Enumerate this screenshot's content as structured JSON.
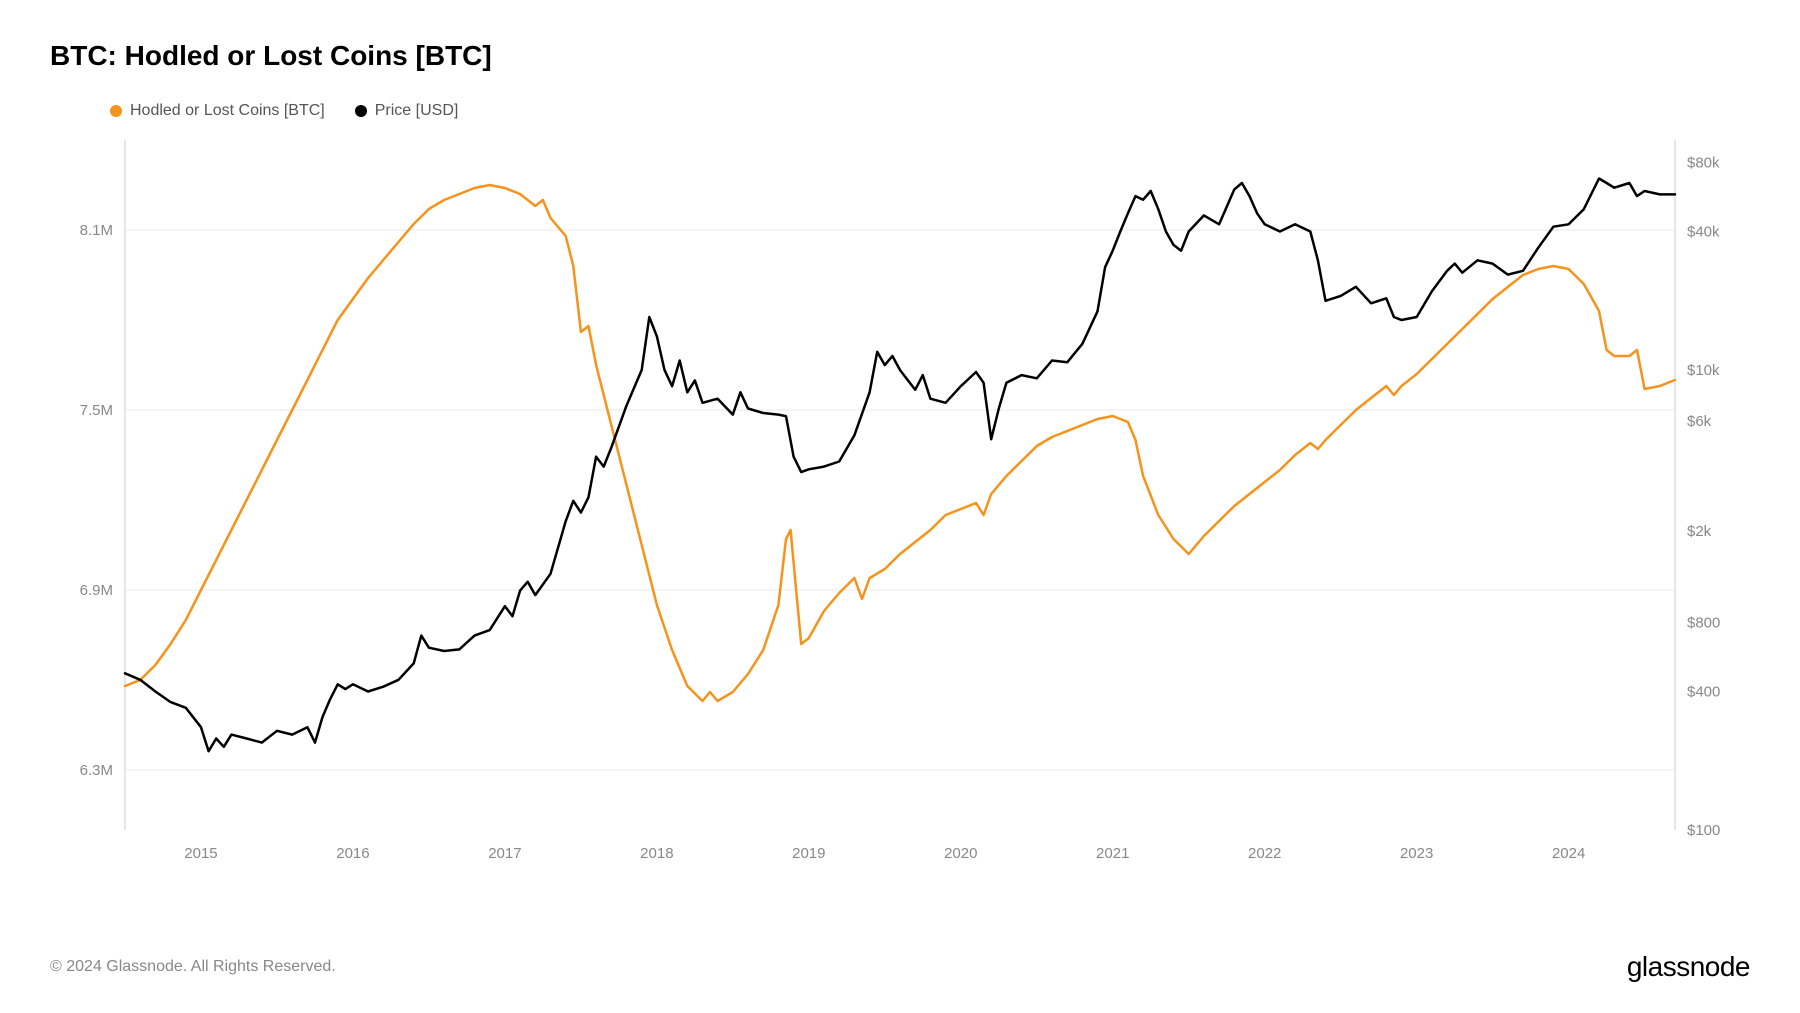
{
  "title": "BTC: Hodled or Lost Coins [BTC]",
  "legend": {
    "hodled": {
      "label": "Hodled or Lost Coins [BTC]",
      "color": "#f7931a"
    },
    "price": {
      "label": "Price [USD]",
      "color": "#000000"
    }
  },
  "chart": {
    "type": "line-dual-axis",
    "background_color": "#ffffff",
    "grid_color": "#e8e8e8",
    "x": {
      "ticks": [
        "2015",
        "2016",
        "2017",
        "2018",
        "2019",
        "2020",
        "2021",
        "2022",
        "2023",
        "2024"
      ],
      "range_start": 2014.5,
      "range_end": 2024.7
    },
    "y_left": {
      "ticks": [
        "6.3M",
        "6.9M",
        "7.5M",
        "8.1M"
      ],
      "tick_values": [
        6300000,
        6900000,
        7500000,
        8100000
      ],
      "min": 6100000,
      "max": 8400000,
      "scale": "linear"
    },
    "y_right": {
      "ticks": [
        "$100",
        "$400",
        "$800",
        "$2k",
        "$6k",
        "$10k",
        "$40k",
        "$80k"
      ],
      "tick_values": [
        100,
        400,
        800,
        2000,
        6000,
        10000,
        40000,
        80000
      ],
      "min": 100,
      "max": 100000,
      "scale": "log"
    },
    "series": {
      "hodled": {
        "color": "#f7931a",
        "line_width": 2.5,
        "data": [
          [
            2014.5,
            6580000
          ],
          [
            2014.6,
            6600000
          ],
          [
            2014.7,
            6650000
          ],
          [
            2014.8,
            6720000
          ],
          [
            2014.9,
            6800000
          ],
          [
            2015.0,
            6900000
          ],
          [
            2015.1,
            7000000
          ],
          [
            2015.2,
            7100000
          ],
          [
            2015.3,
            7200000
          ],
          [
            2015.4,
            7300000
          ],
          [
            2015.5,
            7400000
          ],
          [
            2015.6,
            7500000
          ],
          [
            2015.7,
            7600000
          ],
          [
            2015.8,
            7700000
          ],
          [
            2015.9,
            7800000
          ],
          [
            2016.0,
            7870000
          ],
          [
            2016.1,
            7940000
          ],
          [
            2016.2,
            8000000
          ],
          [
            2016.3,
            8060000
          ],
          [
            2016.4,
            8120000
          ],
          [
            2016.5,
            8170000
          ],
          [
            2016.6,
            8200000
          ],
          [
            2016.7,
            8220000
          ],
          [
            2016.8,
            8240000
          ],
          [
            2016.9,
            8250000
          ],
          [
            2017.0,
            8240000
          ],
          [
            2017.1,
            8220000
          ],
          [
            2017.2,
            8180000
          ],
          [
            2017.25,
            8200000
          ],
          [
            2017.3,
            8140000
          ],
          [
            2017.4,
            8080000
          ],
          [
            2017.45,
            7980000
          ],
          [
            2017.5,
            7760000
          ],
          [
            2017.55,
            7780000
          ],
          [
            2017.6,
            7650000
          ],
          [
            2017.7,
            7450000
          ],
          [
            2017.8,
            7250000
          ],
          [
            2017.9,
            7050000
          ],
          [
            2018.0,
            6850000
          ],
          [
            2018.1,
            6700000
          ],
          [
            2018.2,
            6580000
          ],
          [
            2018.3,
            6530000
          ],
          [
            2018.35,
            6560000
          ],
          [
            2018.4,
            6530000
          ],
          [
            2018.5,
            6560000
          ],
          [
            2018.6,
            6620000
          ],
          [
            2018.7,
            6700000
          ],
          [
            2018.8,
            6850000
          ],
          [
            2018.85,
            7070000
          ],
          [
            2018.88,
            7100000
          ],
          [
            2018.92,
            6880000
          ],
          [
            2018.95,
            6720000
          ],
          [
            2019.0,
            6740000
          ],
          [
            2019.1,
            6830000
          ],
          [
            2019.2,
            6890000
          ],
          [
            2019.3,
            6940000
          ],
          [
            2019.35,
            6870000
          ],
          [
            2019.4,
            6940000
          ],
          [
            2019.5,
            6970000
          ],
          [
            2019.6,
            7020000
          ],
          [
            2019.7,
            7060000
          ],
          [
            2019.8,
            7100000
          ],
          [
            2019.9,
            7150000
          ],
          [
            2020.0,
            7170000
          ],
          [
            2020.1,
            7190000
          ],
          [
            2020.15,
            7150000
          ],
          [
            2020.2,
            7220000
          ],
          [
            2020.3,
            7280000
          ],
          [
            2020.4,
            7330000
          ],
          [
            2020.5,
            7380000
          ],
          [
            2020.6,
            7410000
          ],
          [
            2020.7,
            7430000
          ],
          [
            2020.8,
            7450000
          ],
          [
            2020.9,
            7470000
          ],
          [
            2021.0,
            7480000
          ],
          [
            2021.1,
            7460000
          ],
          [
            2021.15,
            7400000
          ],
          [
            2021.2,
            7280000
          ],
          [
            2021.3,
            7150000
          ],
          [
            2021.4,
            7070000
          ],
          [
            2021.5,
            7020000
          ],
          [
            2021.6,
            7080000
          ],
          [
            2021.7,
            7130000
          ],
          [
            2021.8,
            7180000
          ],
          [
            2021.9,
            7220000
          ],
          [
            2022.0,
            7260000
          ],
          [
            2022.1,
            7300000
          ],
          [
            2022.2,
            7350000
          ],
          [
            2022.3,
            7390000
          ],
          [
            2022.35,
            7370000
          ],
          [
            2022.4,
            7400000
          ],
          [
            2022.5,
            7450000
          ],
          [
            2022.6,
            7500000
          ],
          [
            2022.7,
            7540000
          ],
          [
            2022.8,
            7580000
          ],
          [
            2022.85,
            7550000
          ],
          [
            2022.9,
            7580000
          ],
          [
            2023.0,
            7620000
          ],
          [
            2023.1,
            7670000
          ],
          [
            2023.2,
            7720000
          ],
          [
            2023.3,
            7770000
          ],
          [
            2023.4,
            7820000
          ],
          [
            2023.5,
            7870000
          ],
          [
            2023.6,
            7910000
          ],
          [
            2023.7,
            7950000
          ],
          [
            2023.8,
            7970000
          ],
          [
            2023.9,
            7980000
          ],
          [
            2024.0,
            7970000
          ],
          [
            2024.1,
            7920000
          ],
          [
            2024.2,
            7830000
          ],
          [
            2024.25,
            7700000
          ],
          [
            2024.3,
            7680000
          ],
          [
            2024.4,
            7680000
          ],
          [
            2024.45,
            7700000
          ],
          [
            2024.5,
            7570000
          ],
          [
            2024.6,
            7580000
          ],
          [
            2024.7,
            7600000
          ]
        ]
      },
      "price": {
        "color": "#000000",
        "line_width": 2.5,
        "data": [
          [
            2014.5,
            480
          ],
          [
            2014.6,
            450
          ],
          [
            2014.7,
            400
          ],
          [
            2014.8,
            360
          ],
          [
            2014.9,
            340
          ],
          [
            2015.0,
            280
          ],
          [
            2015.05,
            220
          ],
          [
            2015.1,
            250
          ],
          [
            2015.15,
            230
          ],
          [
            2015.2,
            260
          ],
          [
            2015.3,
            250
          ],
          [
            2015.4,
            240
          ],
          [
            2015.5,
            270
          ],
          [
            2015.6,
            260
          ],
          [
            2015.7,
            280
          ],
          [
            2015.75,
            240
          ],
          [
            2015.8,
            310
          ],
          [
            2015.85,
            370
          ],
          [
            2015.9,
            430
          ],
          [
            2015.95,
            410
          ],
          [
            2016.0,
            430
          ],
          [
            2016.1,
            400
          ],
          [
            2016.2,
            420
          ],
          [
            2016.3,
            450
          ],
          [
            2016.4,
            530
          ],
          [
            2016.45,
            700
          ],
          [
            2016.5,
            620
          ],
          [
            2016.6,
            600
          ],
          [
            2016.7,
            610
          ],
          [
            2016.8,
            700
          ],
          [
            2016.9,
            740
          ],
          [
            2017.0,
            940
          ],
          [
            2017.05,
            850
          ],
          [
            2017.1,
            1100
          ],
          [
            2017.15,
            1200
          ],
          [
            2017.2,
            1050
          ],
          [
            2017.3,
            1300
          ],
          [
            2017.4,
            2200
          ],
          [
            2017.45,
            2700
          ],
          [
            2017.5,
            2400
          ],
          [
            2017.55,
            2800
          ],
          [
            2017.6,
            4200
          ],
          [
            2017.65,
            3800
          ],
          [
            2017.7,
            4600
          ],
          [
            2017.8,
            7000
          ],
          [
            2017.9,
            10000
          ],
          [
            2017.95,
            17000
          ],
          [
            2018.0,
            14000
          ],
          [
            2018.05,
            10000
          ],
          [
            2018.1,
            8500
          ],
          [
            2018.15,
            11000
          ],
          [
            2018.2,
            8000
          ],
          [
            2018.25,
            9000
          ],
          [
            2018.3,
            7200
          ],
          [
            2018.4,
            7500
          ],
          [
            2018.5,
            6400
          ],
          [
            2018.55,
            8000
          ],
          [
            2018.6,
            6800
          ],
          [
            2018.7,
            6500
          ],
          [
            2018.8,
            6400
          ],
          [
            2018.85,
            6300
          ],
          [
            2018.9,
            4200
          ],
          [
            2018.95,
            3600
          ],
          [
            2019.0,
            3700
          ],
          [
            2019.1,
            3800
          ],
          [
            2019.2,
            4000
          ],
          [
            2019.3,
            5200
          ],
          [
            2019.4,
            8000
          ],
          [
            2019.45,
            12000
          ],
          [
            2019.5,
            10500
          ],
          [
            2019.55,
            11500
          ],
          [
            2019.6,
            10000
          ],
          [
            2019.7,
            8200
          ],
          [
            2019.75,
            9500
          ],
          [
            2019.8,
            7500
          ],
          [
            2019.9,
            7200
          ],
          [
            2020.0,
            8500
          ],
          [
            2020.1,
            9800
          ],
          [
            2020.15,
            8800
          ],
          [
            2020.2,
            5000
          ],
          [
            2020.25,
            6800
          ],
          [
            2020.3,
            8800
          ],
          [
            2020.4,
            9500
          ],
          [
            2020.5,
            9200
          ],
          [
            2020.6,
            11000
          ],
          [
            2020.7,
            10800
          ],
          [
            2020.8,
            13000
          ],
          [
            2020.9,
            18000
          ],
          [
            2020.95,
            28000
          ],
          [
            2021.0,
            33000
          ],
          [
            2021.05,
            40000
          ],
          [
            2021.1,
            48000
          ],
          [
            2021.15,
            57000
          ],
          [
            2021.2,
            55000
          ],
          [
            2021.25,
            60000
          ],
          [
            2021.3,
            50000
          ],
          [
            2021.35,
            40000
          ],
          [
            2021.4,
            35000
          ],
          [
            2021.45,
            33000
          ],
          [
            2021.5,
            40000
          ],
          [
            2021.6,
            47000
          ],
          [
            2021.7,
            43000
          ],
          [
            2021.8,
            61000
          ],
          [
            2021.85,
            65000
          ],
          [
            2021.9,
            57000
          ],
          [
            2021.95,
            48000
          ],
          [
            2022.0,
            43000
          ],
          [
            2022.1,
            40000
          ],
          [
            2022.2,
            43000
          ],
          [
            2022.3,
            40000
          ],
          [
            2022.35,
            30000
          ],
          [
            2022.4,
            20000
          ],
          [
            2022.5,
            21000
          ],
          [
            2022.6,
            23000
          ],
          [
            2022.7,
            19500
          ],
          [
            2022.8,
            20500
          ],
          [
            2022.85,
            17000
          ],
          [
            2022.9,
            16500
          ],
          [
            2023.0,
            17000
          ],
          [
            2023.1,
            22000
          ],
          [
            2023.2,
            27000
          ],
          [
            2023.25,
            29000
          ],
          [
            2023.3,
            26500
          ],
          [
            2023.4,
            30000
          ],
          [
            2023.5,
            29000
          ],
          [
            2023.6,
            26000
          ],
          [
            2023.7,
            27000
          ],
          [
            2023.8,
            34000
          ],
          [
            2023.9,
            42000
          ],
          [
            2024.0,
            43000
          ],
          [
            2024.1,
            50000
          ],
          [
            2024.2,
            68000
          ],
          [
            2024.25,
            65000
          ],
          [
            2024.3,
            62000
          ],
          [
            2024.4,
            65000
          ],
          [
            2024.45,
            57000
          ],
          [
            2024.5,
            60000
          ],
          [
            2024.6,
            58000
          ],
          [
            2024.7,
            58000
          ]
        ]
      }
    }
  },
  "footer": {
    "copyright": "© 2024 Glassnode. All Rights Reserved.",
    "brand": "glassnode"
  }
}
